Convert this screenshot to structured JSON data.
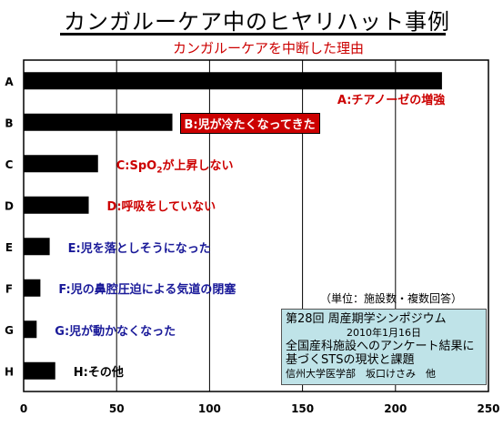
{
  "title": "カンガルーケア中のヒヤリハット事例",
  "subtitle": "カンガルーケアを中断した理由",
  "note": "（単位：施設数・複数回答）",
  "source": {
    "line1": "第28回 周産期学シンポジウム",
    "line2": "2010年1月16日",
    "line3": "全国産科施設へのアンケート結果に",
    "line4": "基づくSTSの現状と課題",
    "line5": "信州大学医学部　坂口けさみ　他"
  },
  "chart_data": {
    "type": "bar",
    "orientation": "horizontal",
    "categories": [
      "A",
      "B",
      "C",
      "D",
      "E",
      "F",
      "G",
      "H"
    ],
    "values": [
      225,
      80,
      40,
      35,
      14,
      9,
      7,
      17
    ],
    "bar_labels": [
      "A:チアノーゼの増強",
      "B:児が冷たくなってきた",
      "C:SpO2が上昇しない",
      "D:呼吸をしていない",
      "E:児を落としそうになった",
      "F:児の鼻腔圧迫による気道の閉塞",
      "G:児が動かなくなった",
      "H:その他"
    ],
    "xlim": [
      0,
      250
    ],
    "xticks": [
      "0",
      "50",
      "100",
      "150",
      "200",
      "250"
    ],
    "grid": "vertical",
    "bar_color": "#000000"
  }
}
